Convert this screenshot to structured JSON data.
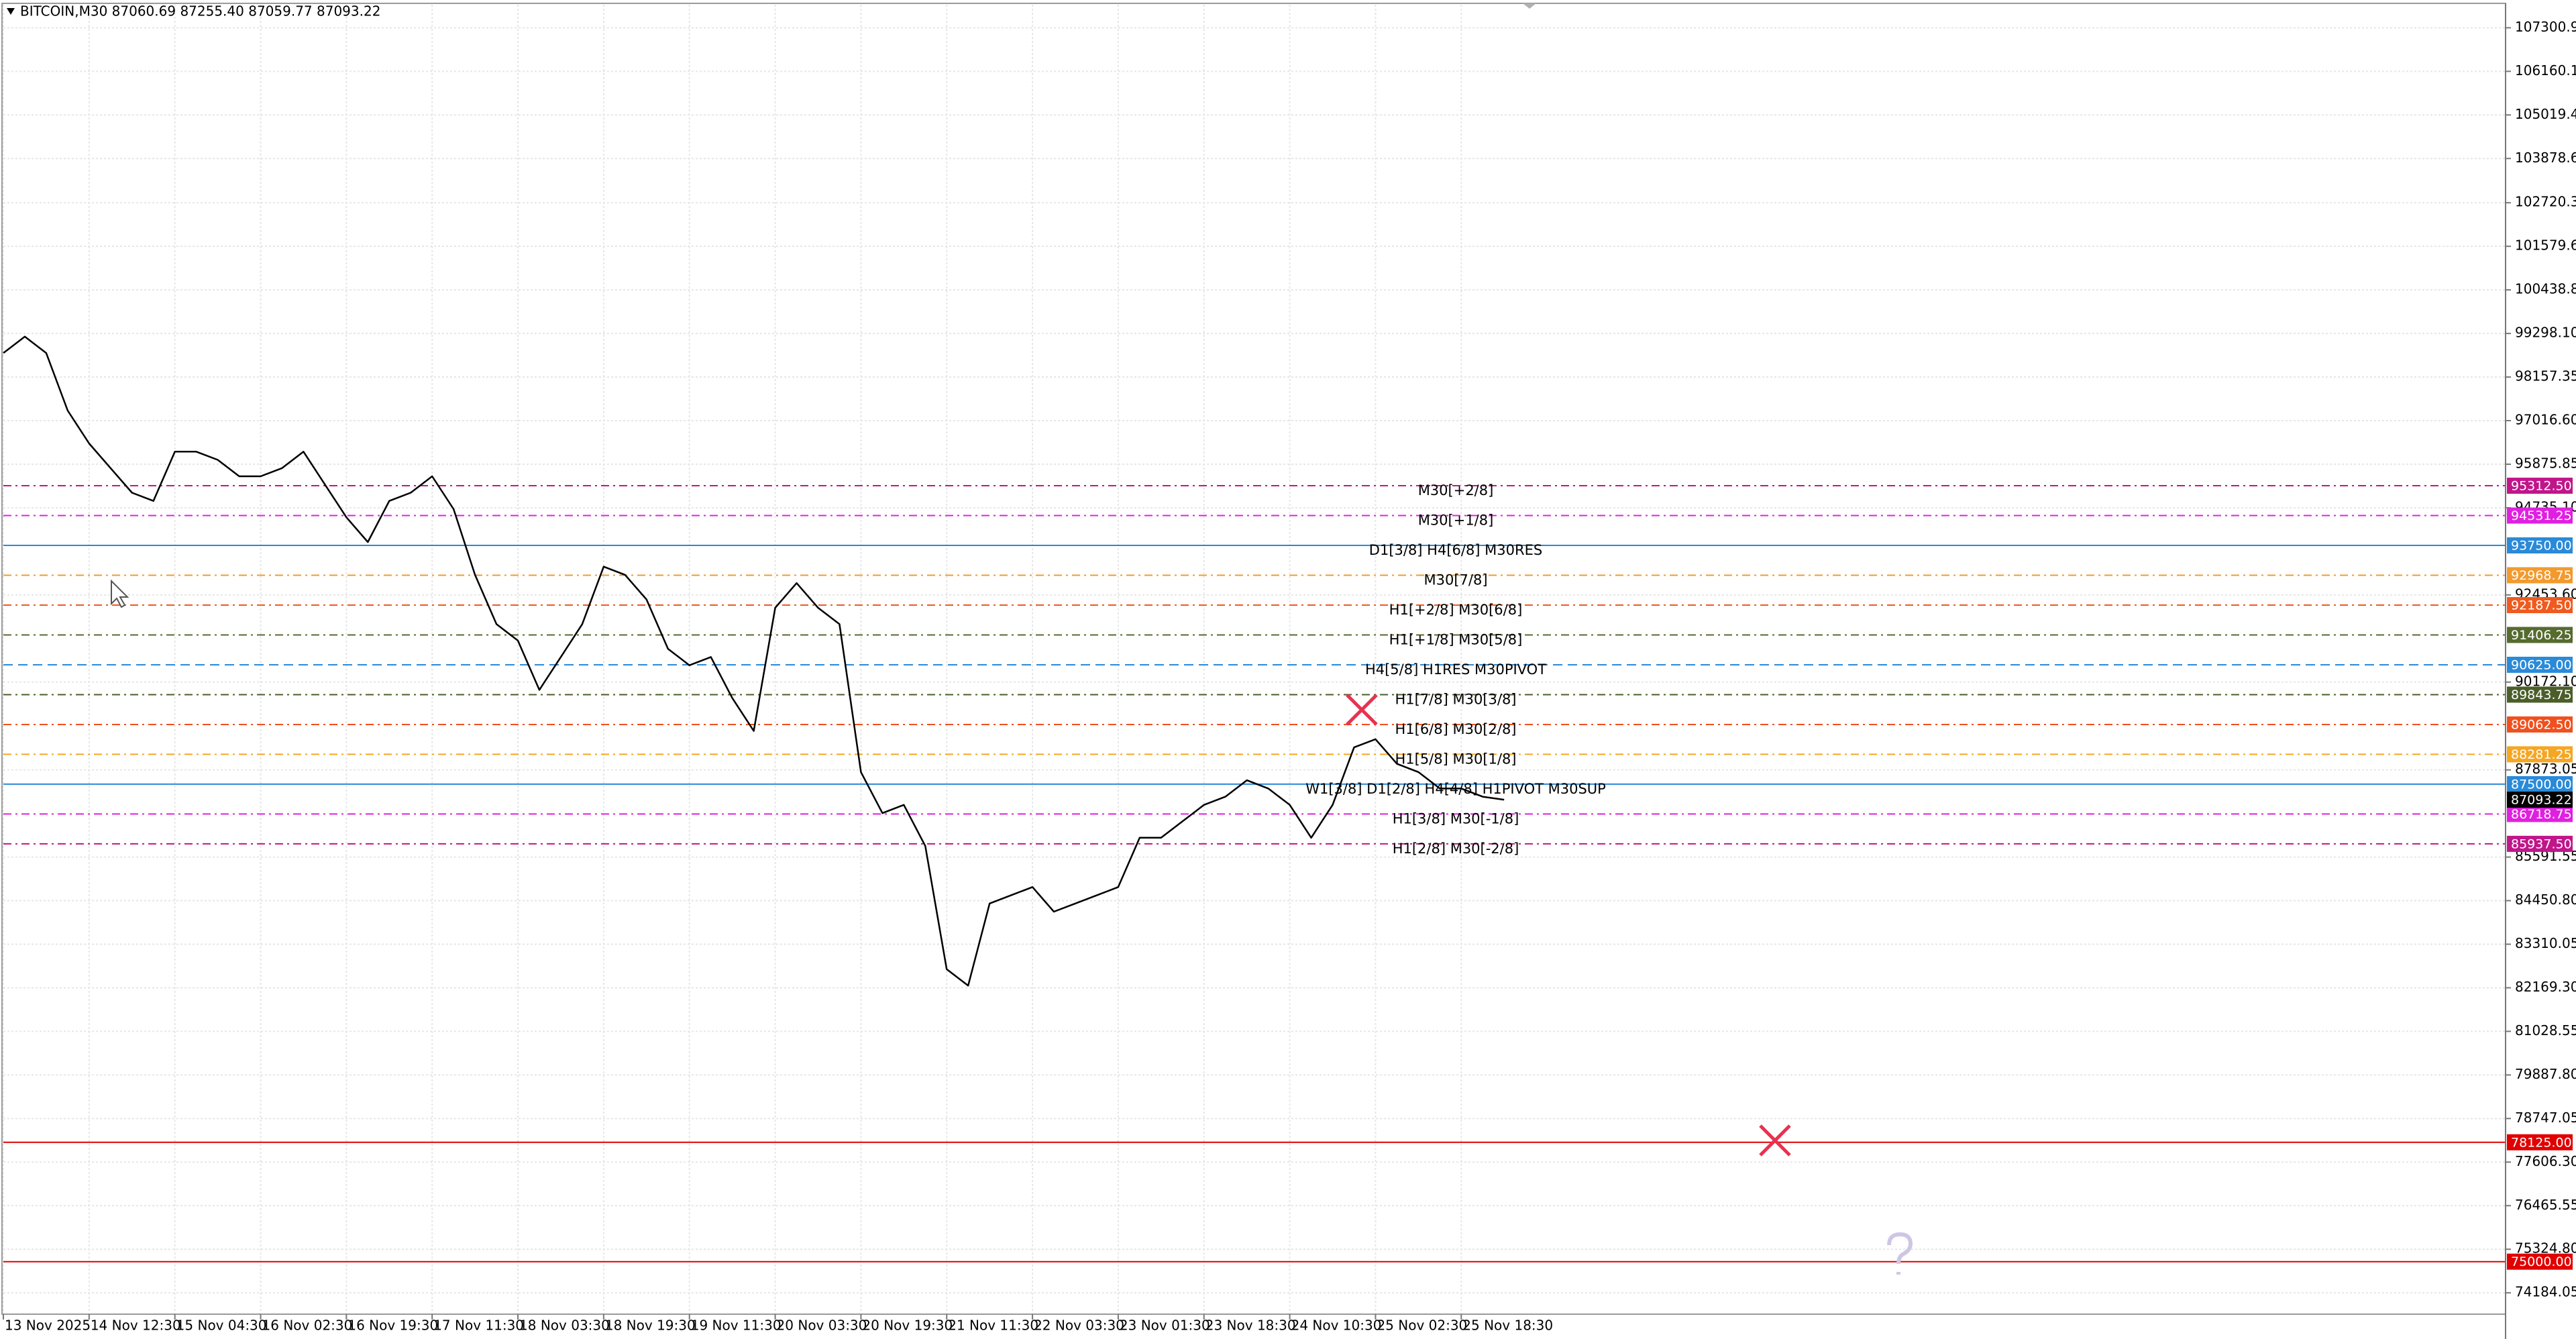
{
  "chart_data": {
    "type": "line",
    "title": "BITCOIN,M30  87060.69 87255.40 87059.77 87093.22",
    "color": "#000000",
    "grid": true,
    "categories": [
      "13 Nov 2025",
      null,
      null,
      null,
      "14 Nov 12:30",
      null,
      null,
      null,
      "15 Nov 04:30",
      null,
      null,
      null,
      "16 Nov 02:30",
      null,
      null,
      null,
      "16 Nov 19:30",
      null,
      null,
      null,
      "17 Nov 11:30",
      null,
      null,
      null,
      "18 Nov 03:30",
      null,
      null,
      null,
      "18 Nov 19:30",
      null,
      null,
      null,
      "19 Nov 11:30",
      null,
      null,
      null,
      "20 Nov 03:30",
      null,
      null,
      null,
      "20 Nov 19:30",
      null,
      null,
      null,
      "21 Nov 11:30",
      null,
      null,
      null,
      "22 Nov 03:30",
      null,
      null,
      null,
      "23 Nov 01:30",
      null,
      null,
      null,
      "23 Nov 18:30",
      null,
      null,
      null,
      "24 Nov 10:30",
      null,
      null,
      null,
      "25 Nov 02:30",
      null,
      null,
      null,
      "25 Nov 18:30",
      null,
      null
    ],
    "values": [
      98785,
      99215,
      98785,
      97280,
      96419,
      95774,
      95129,
      94914,
      96204,
      96204,
      95989,
      95559,
      95559,
      95774,
      96204,
      95344,
      94484,
      93839,
      94914,
      95129,
      95559,
      94699,
      92979,
      91688,
      91258,
      89968,
      90828,
      91688,
      93194,
      92979,
      92333,
      91043,
      90613,
      90828,
      89753,
      88893,
      92118,
      92763,
      92118,
      91688,
      87817,
      86742,
      86957,
      85881,
      82656,
      82226,
      84376,
      84591,
      84807,
      84162,
      84376,
      84591,
      84807,
      86097,
      86097,
      86527,
      86957,
      87172,
      87602,
      87387,
      86957,
      86097,
      86957,
      88462,
      88677,
      88032,
      87817,
      87387,
      87387,
      87172,
      87093.22
    ],
    "ylim": [
      73625,
      107905
    ],
    "yticks": [
      {
        "value": 107300.9,
        "label": "107300.90"
      },
      {
        "value": 106160.15,
        "label": "106160.15"
      },
      {
        "value": 105019.4,
        "label": "105019.40"
      },
      {
        "value": 103878.65,
        "label": "103878.65"
      },
      {
        "value": 102720.35,
        "label": "102720.35"
      },
      {
        "value": 101579.6,
        "label": "101579.60"
      },
      {
        "value": 100438.85,
        "label": "100438.85"
      },
      {
        "value": 99298.1,
        "label": "99298.10"
      },
      {
        "value": 98157.35,
        "label": "98157.35"
      },
      {
        "value": 97016.6,
        "label": "97016.60"
      },
      {
        "value": 95875.85,
        "label": "95875.85"
      },
      {
        "value": 94735.1,
        "label": "94735.10"
      },
      {
        "value": 92453.6,
        "label": "92453.60"
      },
      {
        "value": 90172.1,
        "label": "90172.10"
      },
      {
        "value": 87873.05,
        "label": "87873.05"
      },
      {
        "value": 85591.55,
        "label": "85591.55"
      },
      {
        "value": 84450.8,
        "label": "84450.80"
      },
      {
        "value": 83310.05,
        "label": "83310.05"
      },
      {
        "value": 82169.3,
        "label": "82169.30"
      },
      {
        "value": 81028.55,
        "label": "81028.55"
      },
      {
        "value": 79887.8,
        "label": "79887.80"
      },
      {
        "value": 78747.05,
        "label": "78747.05"
      },
      {
        "value": 77606.3,
        "label": "77606.30"
      },
      {
        "value": 76465.55,
        "label": "76465.55"
      },
      {
        "value": 75324.8,
        "label": "75324.80"
      },
      {
        "value": 74184.05,
        "label": "74184.05"
      }
    ],
    "levels": [
      {
        "name": "M30[+2/8]",
        "price": {
          "value": 95312.5,
          "label": "95312.50"
        },
        "color": "#c0168a",
        "dash": "dashdot"
      },
      {
        "name": "M30[+1/8]",
        "price": {
          "value": 94531.25,
          "label": "94531.25"
        },
        "color": "#e020e0",
        "dash": "dashdot"
      },
      {
        "name": "D1[3/8] H4[6/8] M30RES",
        "price": {
          "value": 93750,
          "label": "93750.00"
        },
        "color": "#2a8ad8",
        "dash": "solid"
      },
      {
        "name": "M30[7/8]",
        "price": {
          "value": 92968.75,
          "label": "92968.75"
        },
        "color": "#f29a2e",
        "dash": "dashdot"
      },
      {
        "name": "H1[+2/8] M30[6/8]",
        "price": {
          "value": 92187.5,
          "label": "92187.50"
        },
        "color": "#ef5a1e",
        "dash": "dashdot"
      },
      {
        "name": "H1[+1/8] M30[5/8]",
        "price": {
          "value": 91406.25,
          "label": "91406.25"
        },
        "color": "#556b2f",
        "dash": "dashdot"
      },
      {
        "name": "H4[5/8] H1RES M30PIVOT",
        "price": {
          "value": 90625,
          "label": "90625.00"
        },
        "color": "#2a8ad8",
        "dash": "dash"
      },
      {
        "name": "H1[7/8] M30[3/8]",
        "price": {
          "value": 89843.75,
          "label": "89843.75"
        },
        "color": "#4b5e2a",
        "dash": "dashdot"
      },
      {
        "name": "H1[6/8] M30[2/8]",
        "price": {
          "value": 89062.5,
          "label": "89062.50"
        },
        "color": "#f0501e",
        "dash": "dashdot"
      },
      {
        "name": "H1[5/8] M30[1/8]",
        "price": {
          "value": 88281.25,
          "label": "88281.25"
        },
        "color": "#f5a623",
        "dash": "dashdot"
      },
      {
        "name": "W1[3/8] D1[2/8] H4[4/8] H1PIVOT M30SUP",
        "price": {
          "value": 87500,
          "label": "87500.00"
        },
        "color": "#2a8ad8",
        "dash": "solid"
      },
      {
        "name": "H1[3/8] M30[-1/8]",
        "price": {
          "value": 86718.75,
          "label": "86718.75"
        },
        "color": "#e020e0",
        "dash": "dashdot"
      },
      {
        "name": "H1[2/8] M30[-2/8]",
        "price": {
          "value": 85937.5,
          "label": "85937.50"
        },
        "color": "#c0168a",
        "dash": "dashdot"
      },
      {
        "name": null,
        "price": {
          "value": 78125,
          "label": "78125.00"
        },
        "color": "#e00000",
        "dash": "solid"
      },
      {
        "name": null,
        "price": {
          "value": 75000,
          "label": "75000.00"
        },
        "color": "#e00000",
        "dash": "solid"
      }
    ],
    "last_price": {
      "value": 87093.22,
      "label": "87093.22"
    }
  }
}
